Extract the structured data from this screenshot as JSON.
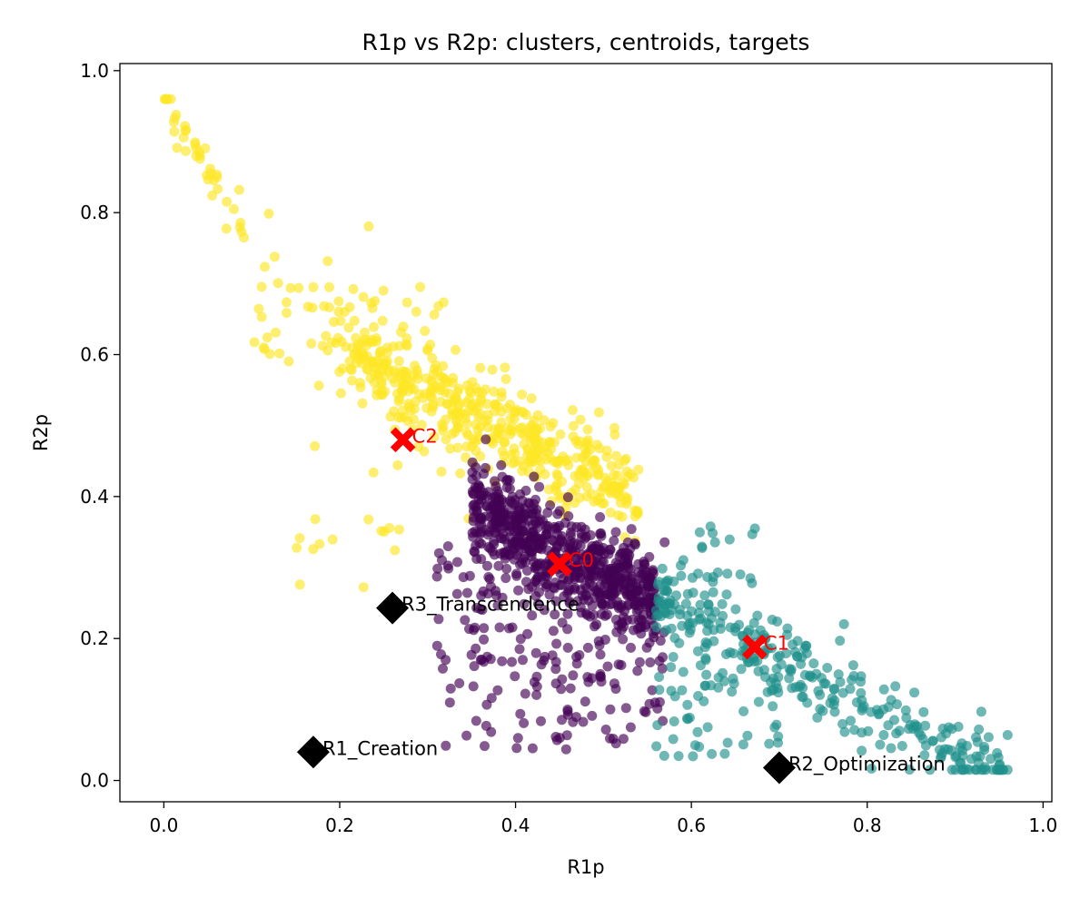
{
  "chart_data": {
    "type": "scatter",
    "title": "R1p vs R2p: clusters, centroids, targets",
    "xlabel": "R1p",
    "ylabel": "R2p",
    "xlim": [
      -0.05,
      1.01
    ],
    "ylim": [
      -0.03,
      1.01
    ],
    "x_ticks": [
      0.0,
      0.2,
      0.4,
      0.6,
      0.8,
      1.0
    ],
    "y_ticks": [
      0.0,
      0.2,
      0.4,
      0.6,
      0.8,
      1.0
    ],
    "x_tick_labels": [
      "0.0",
      "0.2",
      "0.4",
      "0.6",
      "0.8",
      "1.0"
    ],
    "y_tick_labels": [
      "0.0",
      "0.2",
      "0.4",
      "0.6",
      "0.8",
      "1.0"
    ],
    "grid": false,
    "clusters": [
      {
        "id": 0,
        "color": "#440154"
      },
      {
        "id": 1,
        "color": "#21918c"
      },
      {
        "id": 2,
        "color": "#fde725"
      }
    ],
    "centroids": [
      {
        "label": "C0",
        "x": 0.45,
        "y": 0.305,
        "color": "#ff0000"
      },
      {
        "label": "C1",
        "x": 0.672,
        "y": 0.188,
        "color": "#ff0000"
      },
      {
        "label": "C2",
        "x": 0.272,
        "y": 0.48,
        "color": "#ff0000"
      }
    ],
    "targets": [
      {
        "label": "R1_Creation",
        "x": 0.17,
        "y": 0.04,
        "color": "#000000"
      },
      {
        "label": "R2_Optimization",
        "x": 0.7,
        "y": 0.018,
        "color": "#000000"
      },
      {
        "label": "R3_Transcendence",
        "x": 0.26,
        "y": 0.243,
        "color": "#000000"
      }
    ]
  }
}
